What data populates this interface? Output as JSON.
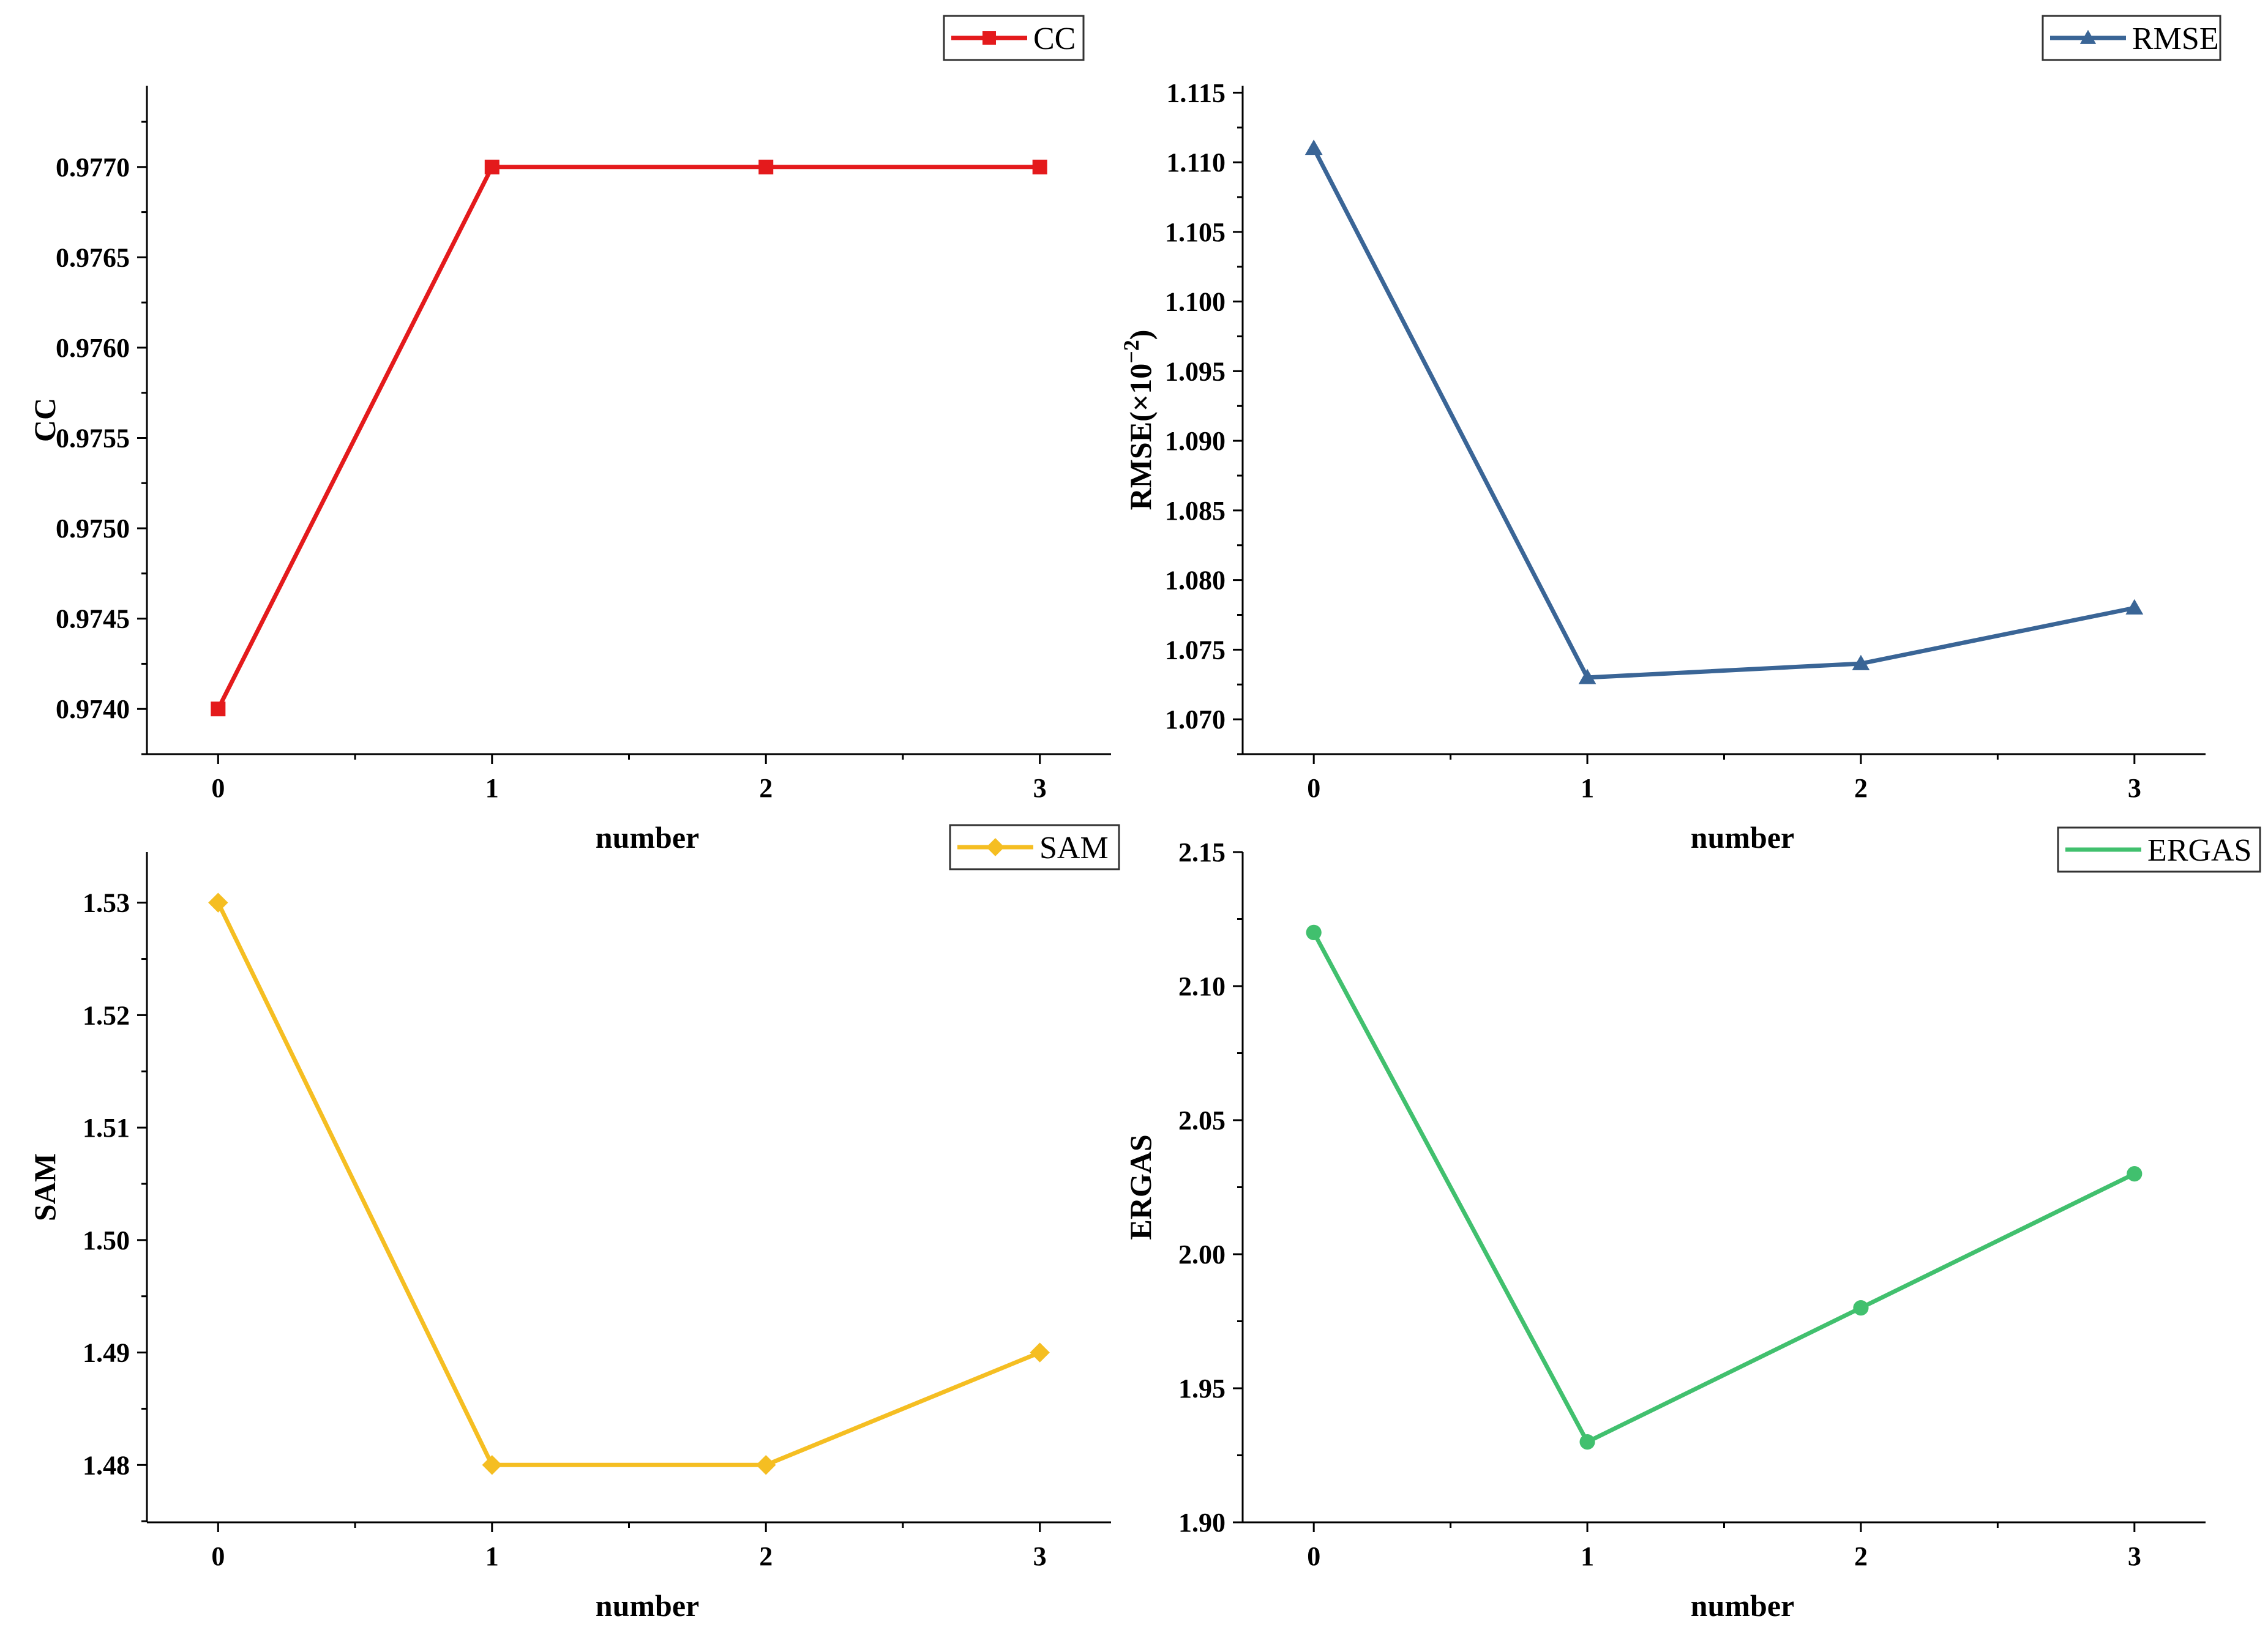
{
  "chart_data": [
    {
      "id": "cc",
      "type": "line",
      "title": "",
      "xlabel": "number",
      "ylabel": "CC",
      "x": [
        0,
        1,
        2,
        3
      ],
      "xticks": [
        "0",
        "1",
        "2",
        "3"
      ],
      "series": [
        {
          "name": "CC",
          "values": [
            0.974,
            0.977,
            0.977,
            0.977
          ],
          "color": "#e41a1c",
          "marker": "square"
        }
      ],
      "ylim": [
        0.97375,
        0.97745
      ],
      "yticks": [
        0.974,
        0.9745,
        0.975,
        0.9755,
        0.976,
        0.9765,
        0.977
      ],
      "ytick_labels": [
        "0.9740",
        "0.9745",
        "0.9750",
        "0.9755",
        "0.9760",
        "0.9765",
        "0.9770"
      ],
      "legend": "top-right",
      "grid": false
    },
    {
      "id": "rmse",
      "type": "line",
      "title": "",
      "xlabel": "number",
      "ylabel": "RMSE(×10",
      "ylabel_sup": "−2",
      "ylabel_end": ")",
      "x": [
        0,
        1,
        2,
        3
      ],
      "xticks": [
        "0",
        "1",
        "2",
        "3"
      ],
      "series": [
        {
          "name": "RMSE",
          "values": [
            1.111,
            1.073,
            1.074,
            1.078
          ],
          "color": "#3a6596",
          "marker": "triangle"
        }
      ],
      "ylim": [
        1.0675,
        1.1155
      ],
      "yticks": [
        1.07,
        1.075,
        1.08,
        1.085,
        1.09,
        1.095,
        1.1,
        1.105,
        1.11,
        1.115
      ],
      "ytick_labels": [
        "1.070",
        "1.075",
        "1.080",
        "1.085",
        "1.090",
        "1.095",
        "1.100",
        "1.105",
        "1.110",
        "1.115"
      ],
      "legend": "top-right",
      "grid": false
    },
    {
      "id": "sam",
      "type": "line",
      "title": "",
      "xlabel": "number",
      "ylabel": "SAM",
      "x": [
        0,
        1,
        2,
        3
      ],
      "xticks": [
        "0",
        "1",
        "2",
        "3"
      ],
      "series": [
        {
          "name": "SAM",
          "values": [
            1.53,
            1.48,
            1.48,
            1.49
          ],
          "color": "#f5be22",
          "marker": "diamond"
        }
      ],
      "ylim": [
        1.4749,
        1.5345
      ],
      "yticks": [
        1.48,
        1.49,
        1.5,
        1.51,
        1.52,
        1.53
      ],
      "ytick_labels": [
        "1.48",
        "1.49",
        "1.50",
        "1.51",
        "1.52",
        "1.53"
      ],
      "legend": "top-right",
      "grid": false
    },
    {
      "id": "ergas",
      "type": "line",
      "title": "",
      "xlabel": "number",
      "ylabel": "ERGAS",
      "x": [
        0,
        1,
        2,
        3
      ],
      "xticks": [
        "0",
        "1",
        "2",
        "3"
      ],
      "series": [
        {
          "name": "ERGAS",
          "values": [
            2.12,
            1.93,
            1.98,
            2.03
          ],
          "color": "#41c06e",
          "marker": "circle"
        }
      ],
      "ylim": [
        1.9,
        2.15
      ],
      "yticks": [
        1.9,
        1.95,
        2.0,
        2.05,
        2.1,
        2.15
      ],
      "ytick_labels": [
        "1.90",
        "1.95",
        "2.00",
        "2.05",
        "2.10",
        "2.15"
      ],
      "legend": "top-right",
      "grid": false
    }
  ]
}
